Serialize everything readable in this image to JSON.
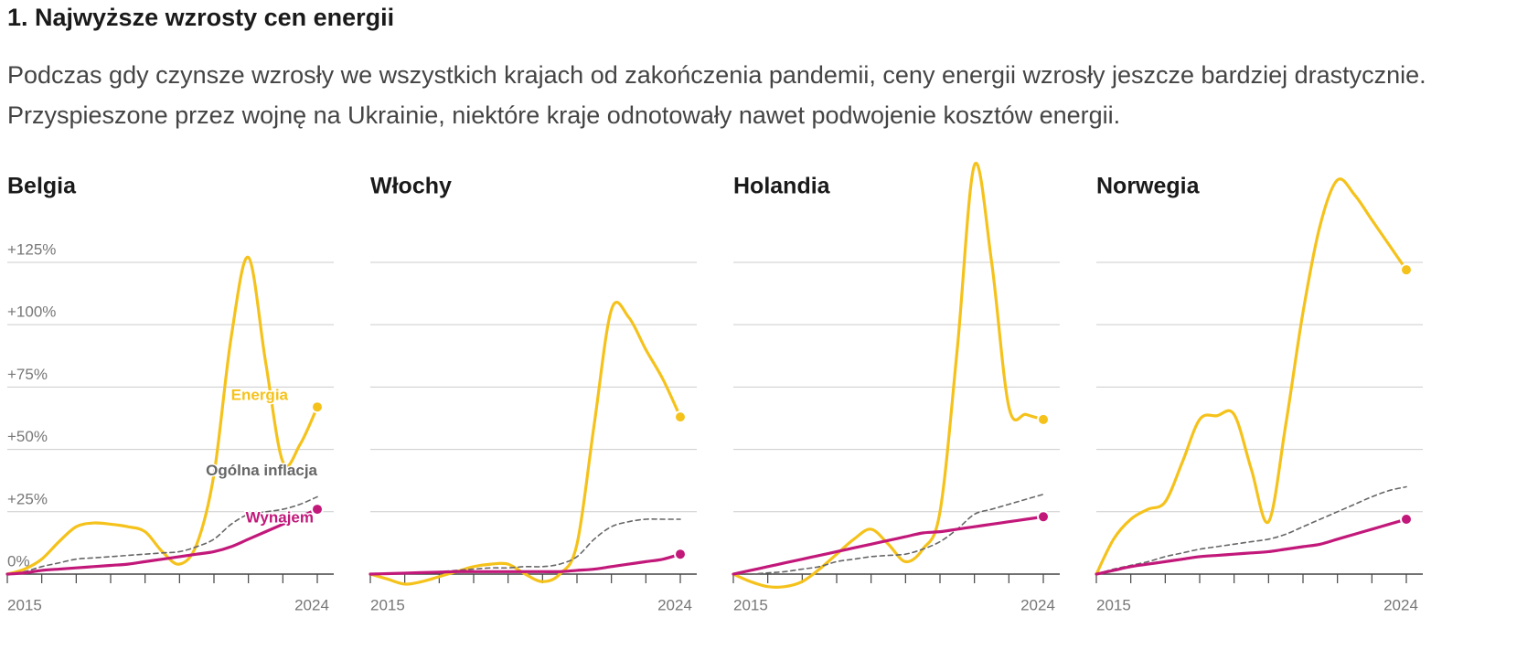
{
  "header": {
    "title": "1. Najwyższe wzrosty cen energii",
    "subtitle": "Podczas gdy czynsze wzrosły we wszystkich krajach od zakończenia pandemii, ceny energii wzrosły jeszcze bardziej drastycznie. Przyspieszone przez wojnę na Ukrainie, niektóre kraje odnotowały nawet podwojenie kosztów energii."
  },
  "chart_data": [
    {
      "type": "line",
      "title": "Belgia",
      "x": [
        2015,
        2015.5,
        2016,
        2016.5,
        2017,
        2017.5,
        2018,
        2018.5,
        2019,
        2019.5,
        2020,
        2020.5,
        2021,
        2021.5,
        2022,
        2022.5,
        2023,
        2023.5,
        2024
      ],
      "xlim": [
        2015,
        2024
      ],
      "xticks": [
        2015,
        {
          "value": 2016,
          "label": null
        },
        {
          "value": 2017,
          "label": null
        },
        {
          "value": 2018,
          "label": null
        },
        {
          "value": 2019,
          "label": null
        },
        {
          "value": 2020,
          "label": null
        },
        {
          "value": 2021,
          "label": null
        },
        {
          "value": 2022,
          "label": null
        },
        {
          "value": 2023,
          "label": null
        },
        2024
      ],
      "ylim": [
        -10,
        170
      ],
      "yticks": [
        {
          "value": 0,
          "label": "0%"
        },
        {
          "value": 25,
          "label": "+25%"
        },
        {
          "value": 50,
          "label": "+50%"
        },
        {
          "value": 75,
          "label": "+75%"
        },
        {
          "value": 100,
          "label": "+100%"
        },
        {
          "value": 125,
          "label": "+125%"
        }
      ],
      "ytick_labels": true,
      "series": [
        {
          "name": "Energia",
          "color": "#f5c21b",
          "dashed": false,
          "end_dot": true,
          "values": [
            0,
            2,
            6,
            13,
            19,
            20.5,
            20,
            19,
            17,
            9,
            4,
            12,
            40,
            95,
            127,
            85,
            45,
            52,
            67
          ]
        },
        {
          "name": "Ogólna inflacja",
          "color": "#666666",
          "dashed": true,
          "end_dot": false,
          "values": [
            0,
            1,
            3,
            4.5,
            6,
            6.5,
            7,
            7.5,
            8,
            8.5,
            9,
            11,
            14,
            20,
            24,
            25,
            26,
            28,
            31
          ]
        },
        {
          "name": "Wynajem",
          "color": "#c2187a",
          "dashed": false,
          "end_dot": true,
          "values": [
            0,
            0.5,
            1.5,
            2,
            2.5,
            3,
            3.5,
            4,
            5,
            6,
            7,
            8,
            9,
            11,
            14,
            17,
            20,
            23,
            26
          ]
        }
      ]
    },
    {
      "type": "line",
      "title": "Włochy",
      "x": [
        2015,
        2015.5,
        2016,
        2016.5,
        2017,
        2017.5,
        2018,
        2018.5,
        2019,
        2019.5,
        2020,
        2020.5,
        2021,
        2021.5,
        2022,
        2022.5,
        2023,
        2023.5,
        2024
      ],
      "xlim": [
        2015,
        2024
      ],
      "xticks": [
        2015,
        {
          "value": 2016,
          "label": null
        },
        {
          "value": 2017,
          "label": null
        },
        {
          "value": 2018,
          "label": null
        },
        {
          "value": 2019,
          "label": null
        },
        {
          "value": 2020,
          "label": null
        },
        {
          "value": 2021,
          "label": null
        },
        {
          "value": 2022,
          "label": null
        },
        {
          "value": 2023,
          "label": null
        },
        2024
      ],
      "ylim": [
        -10,
        170
      ],
      "yticks": [
        0,
        25,
        50,
        75,
        100,
        125
      ],
      "ytick_labels": false,
      "series": [
        {
          "color": "#f5c21b",
          "dashed": false,
          "end_dot": true,
          "values": [
            0,
            -2,
            -4,
            -3,
            -1,
            1,
            3,
            4,
            4,
            0,
            -3,
            0,
            12,
            60,
            106,
            103,
            90,
            78,
            63
          ]
        },
        {
          "color": "#666666",
          "dashed": true,
          "end_dot": false,
          "values": [
            0,
            0,
            0.5,
            0.5,
            1,
            1.5,
            2,
            2.5,
            2.5,
            3,
            3,
            4,
            7,
            14,
            19,
            21,
            22,
            22,
            22
          ]
        },
        {
          "color": "#c2187a",
          "dashed": false,
          "end_dot": true,
          "values": [
            0,
            0.2,
            0.4,
            0.6,
            0.8,
            1,
            1,
            1,
            1,
            1,
            1,
            1,
            1.5,
            2,
            3,
            4,
            5,
            6,
            8
          ]
        }
      ]
    },
    {
      "type": "line",
      "title": "Holandia",
      "x": [
        2015,
        2015.5,
        2016,
        2016.5,
        2017,
        2017.5,
        2018,
        2018.5,
        2019,
        2019.5,
        2020,
        2020.5,
        2021,
        2021.5,
        2022,
        2022.5,
        2023,
        2023.5,
        2024
      ],
      "xlim": [
        2015,
        2024
      ],
      "xticks": [
        2015,
        {
          "value": 2016,
          "label": null
        },
        {
          "value": 2017,
          "label": null
        },
        {
          "value": 2018,
          "label": null
        },
        {
          "value": 2019,
          "label": null
        },
        {
          "value": 2020,
          "label": null
        },
        {
          "value": 2021,
          "label": null
        },
        {
          "value": 2022,
          "label": null
        },
        {
          "value": 2023,
          "label": null
        },
        2024
      ],
      "ylim": [
        -10,
        170
      ],
      "yticks": [
        0,
        25,
        50,
        75,
        100,
        125
      ],
      "ytick_labels": false,
      "series": [
        {
          "color": "#f5c21b",
          "dashed": false,
          "end_dot": true,
          "values": [
            0,
            -3,
            -5,
            -5,
            -3,
            2,
            8,
            14,
            18,
            12,
            5,
            10,
            25,
            90,
            164,
            125,
            67,
            64,
            62
          ]
        },
        {
          "color": "#666666",
          "dashed": true,
          "end_dot": false,
          "values": [
            0,
            0,
            0.5,
            1,
            2,
            3,
            5,
            6,
            7,
            7.5,
            8,
            10,
            13,
            18,
            24,
            26,
            28,
            30,
            32
          ]
        },
        {
          "color": "#c2187a",
          "dashed": false,
          "end_dot": true,
          "values": [
            0,
            1.5,
            3,
            4.5,
            6,
            7.5,
            9,
            10.5,
            12,
            13.5,
            15,
            16.5,
            17,
            18,
            19,
            20,
            21,
            22,
            23
          ]
        }
      ]
    },
    {
      "type": "line",
      "title": "Norwegia",
      "x": [
        2015,
        2015.5,
        2016,
        2016.5,
        2017,
        2017.5,
        2018,
        2018.5,
        2019,
        2019.5,
        2020,
        2020.5,
        2021,
        2021.5,
        2022,
        2022.5,
        2023,
        2023.5,
        2024
      ],
      "xlim": [
        2015,
        2024
      ],
      "xticks": [
        2015,
        {
          "value": 2016,
          "label": null
        },
        {
          "value": 2017,
          "label": null
        },
        {
          "value": 2018,
          "label": null
        },
        {
          "value": 2019,
          "label": null
        },
        {
          "value": 2020,
          "label": null
        },
        {
          "value": 2021,
          "label": null
        },
        {
          "value": 2022,
          "label": null
        },
        {
          "value": 2023,
          "label": null
        },
        2024
      ],
      "ylim": [
        -10,
        170
      ],
      "yticks": [
        0,
        25,
        50,
        75,
        100,
        125
      ],
      "ytick_labels": false,
      "series": [
        {
          "color": "#f5c21b",
          "dashed": false,
          "end_dot": true,
          "values": [
            0,
            14,
            22,
            26,
            29,
            45,
            62,
            63.5,
            64,
            42,
            21,
            60,
            105,
            140,
            158,
            152,
            142,
            132,
            122
          ]
        },
        {
          "color": "#666666",
          "dashed": true,
          "end_dot": false,
          "values": [
            0,
            2,
            3.5,
            5,
            7,
            8.5,
            10,
            11,
            12,
            13,
            14,
            16,
            19,
            22,
            25,
            28,
            31,
            33.5,
            35
          ]
        },
        {
          "color": "#c2187a",
          "dashed": false,
          "end_dot": true,
          "values": [
            0,
            1.5,
            3,
            4,
            5,
            6,
            7,
            7.5,
            8,
            8.5,
            9,
            10,
            11,
            12,
            14,
            16,
            18,
            20,
            22
          ]
        }
      ]
    }
  ]
}
